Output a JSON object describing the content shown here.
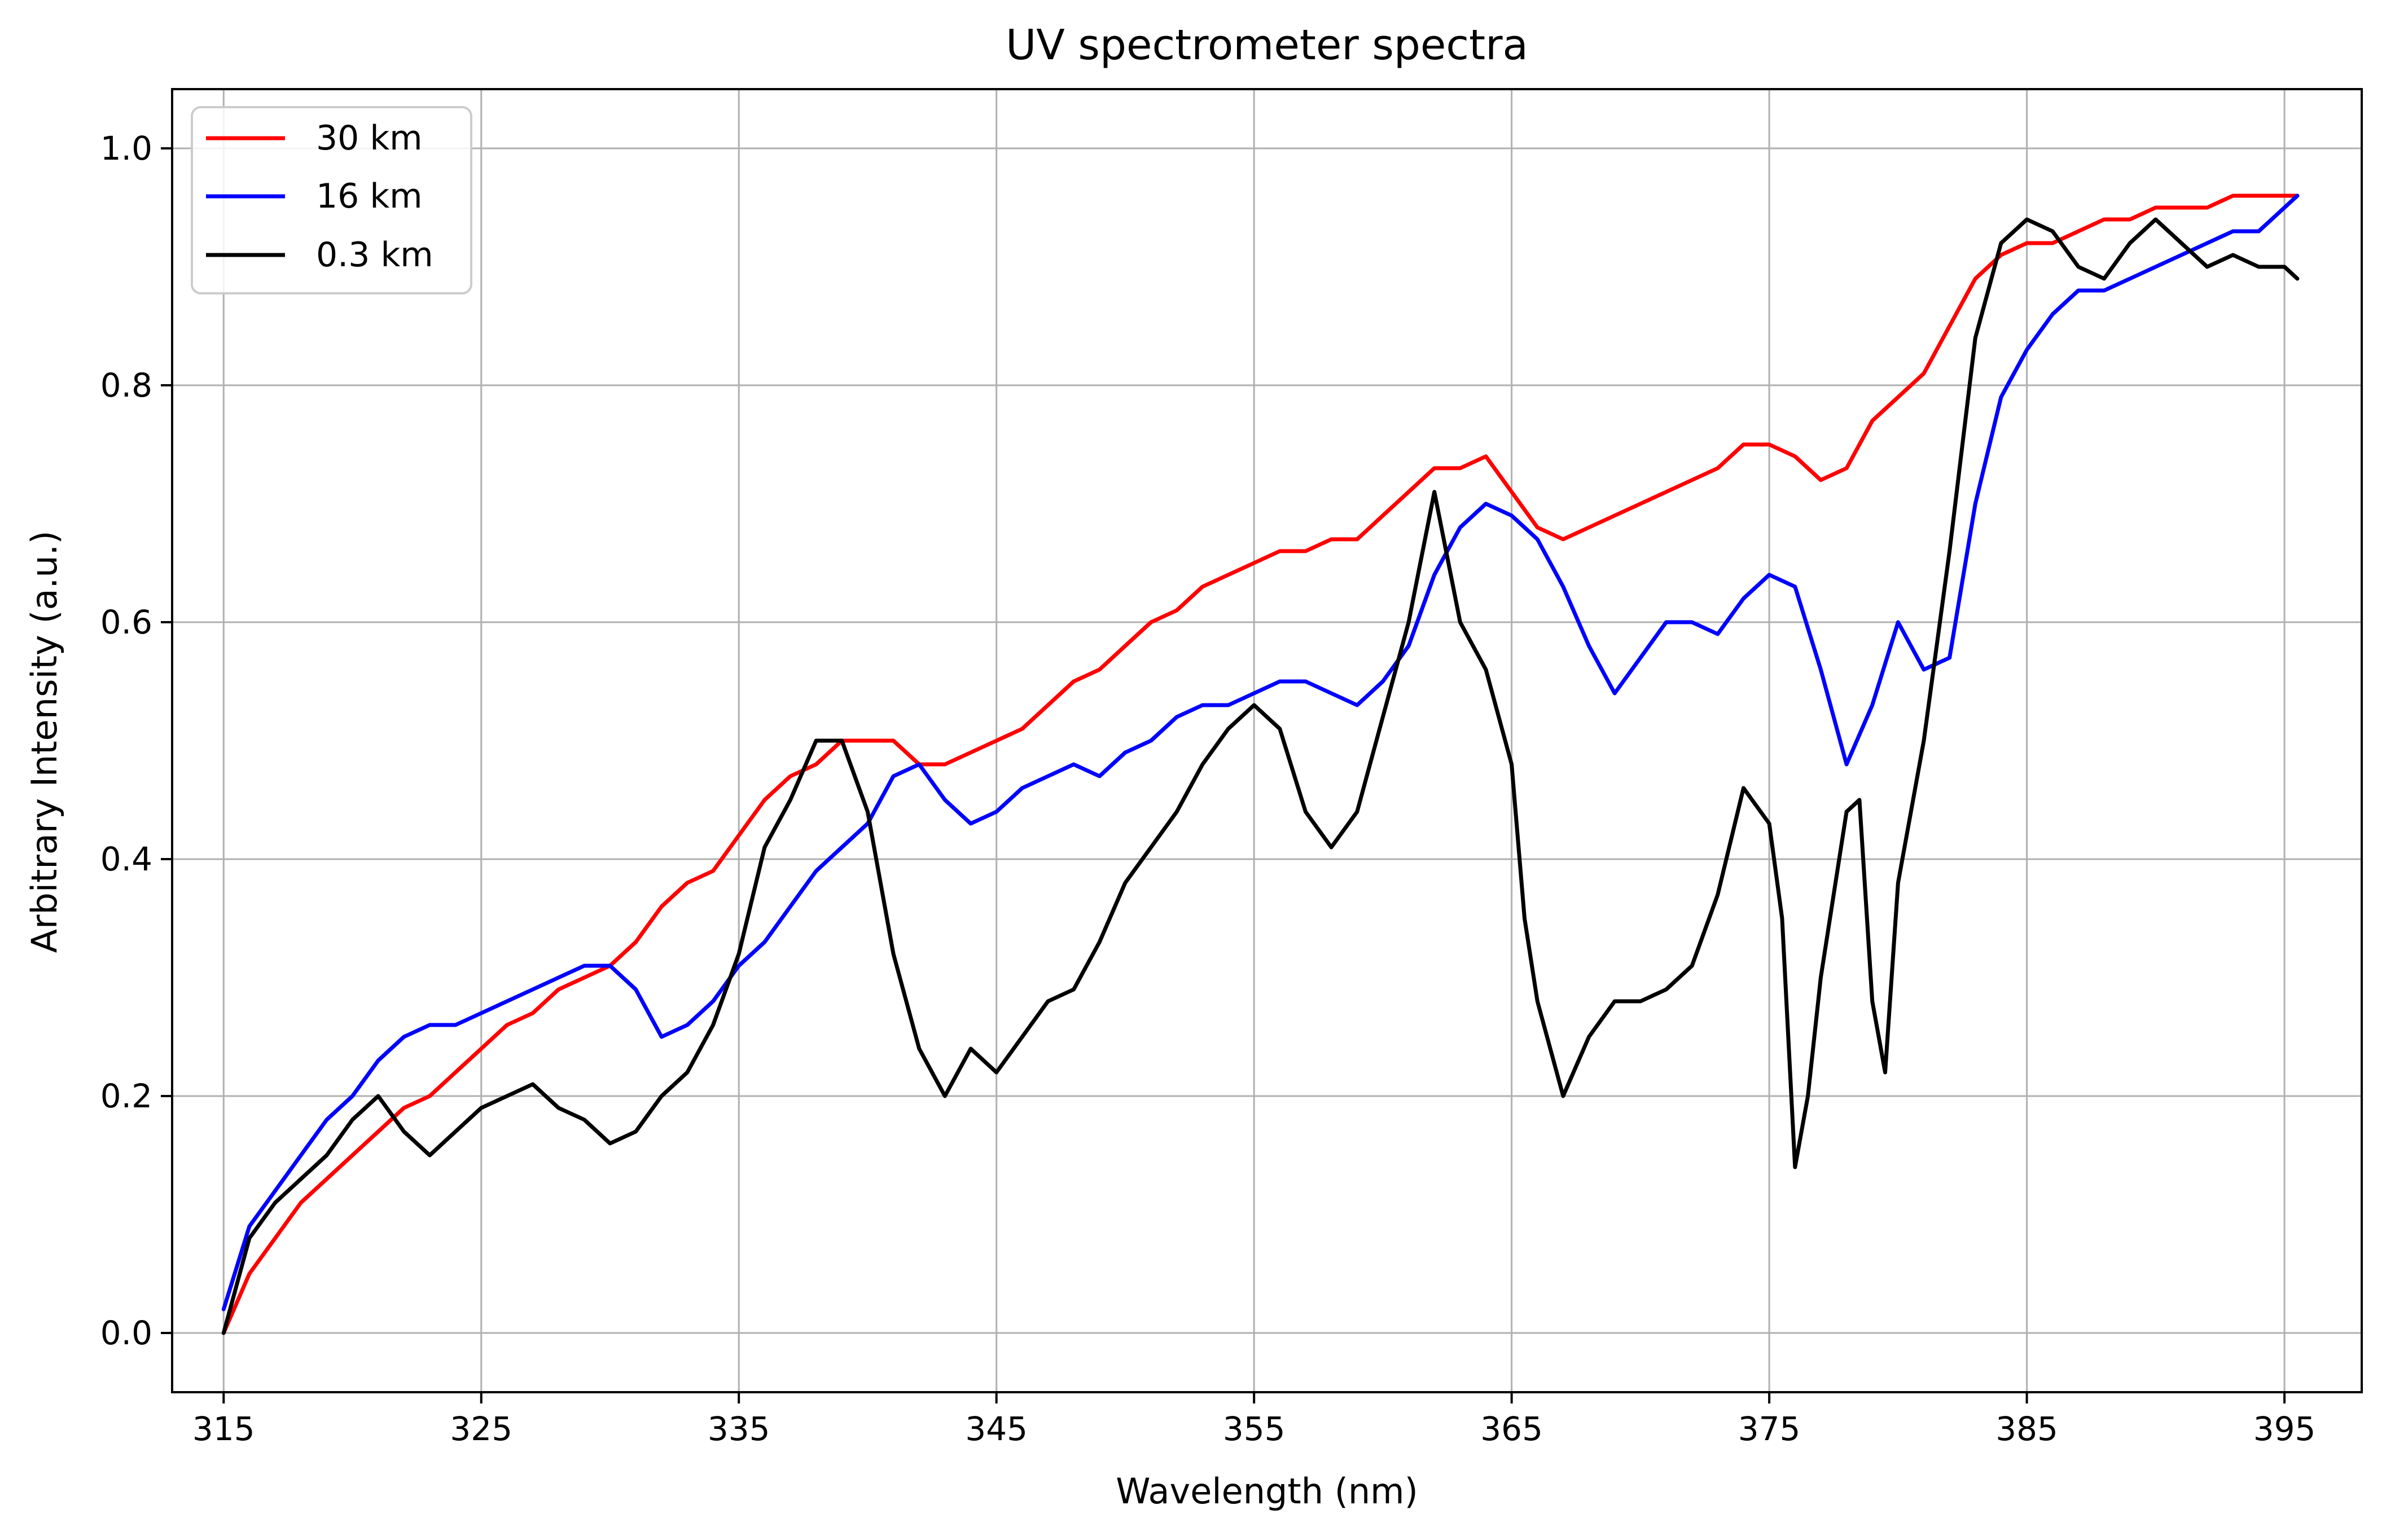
{
  "chart_data": {
    "type": "line",
    "title": "UV spectrometer spectra",
    "xlabel": "Wavelength (nm)",
    "ylabel": "Arbitrary Intensity (a.u.)",
    "xlim": [
      313,
      398
    ],
    "ylim": [
      -0.05,
      1.05
    ],
    "xticks": [
      315,
      325,
      335,
      345,
      355,
      365,
      375,
      385,
      395
    ],
    "xtick_labels": [
      "315",
      "325",
      "335",
      "345",
      "355",
      "365",
      "375",
      "385",
      "395"
    ],
    "yticks": [
      0.0,
      0.2,
      0.4,
      0.6,
      0.8,
      1.0
    ],
    "ytick_labels": [
      "0.0",
      "0.2",
      "0.4",
      "0.6",
      "0.8",
      "1.0"
    ],
    "grid": true,
    "legend_position": "upper-left",
    "series": [
      {
        "name": "30 km",
        "color": "#ff0000",
        "x": [
          315,
          316,
          317,
          318,
          319,
          320,
          321,
          322,
          323,
          324,
          325,
          326,
          327,
          328,
          329,
          330,
          331,
          332,
          333,
          334,
          335,
          336,
          337,
          338,
          339,
          340,
          341,
          342,
          343,
          344,
          345,
          346,
          347,
          348,
          349,
          350,
          351,
          352,
          353,
          354,
          355,
          356,
          357,
          358,
          359,
          360,
          361,
          362,
          363,
          364,
          365,
          366,
          367,
          368,
          369,
          370,
          371,
          372,
          373,
          374,
          375,
          376,
          377,
          378,
          379,
          380,
          381,
          382,
          383,
          384,
          385,
          386,
          387,
          388,
          389,
          390,
          391,
          392,
          393,
          394,
          395,
          395.5
        ],
        "y": [
          0.0,
          0.05,
          0.08,
          0.11,
          0.13,
          0.15,
          0.17,
          0.19,
          0.2,
          0.22,
          0.24,
          0.26,
          0.27,
          0.29,
          0.3,
          0.31,
          0.33,
          0.36,
          0.38,
          0.39,
          0.42,
          0.45,
          0.47,
          0.48,
          0.5,
          0.5,
          0.5,
          0.48,
          0.48,
          0.49,
          0.5,
          0.51,
          0.53,
          0.55,
          0.56,
          0.58,
          0.6,
          0.61,
          0.63,
          0.64,
          0.65,
          0.66,
          0.66,
          0.67,
          0.67,
          0.69,
          0.71,
          0.73,
          0.73,
          0.74,
          0.71,
          0.68,
          0.67,
          0.68,
          0.69,
          0.7,
          0.71,
          0.72,
          0.73,
          0.75,
          0.75,
          0.74,
          0.72,
          0.73,
          0.77,
          0.79,
          0.81,
          0.85,
          0.89,
          0.91,
          0.92,
          0.92,
          0.93,
          0.94,
          0.94,
          0.95,
          0.95,
          0.95,
          0.96,
          0.96,
          0.96,
          0.96
        ]
      },
      {
        "name": "16 km",
        "color": "#0000ff",
        "x": [
          315,
          316,
          317,
          318,
          319,
          320,
          321,
          322,
          323,
          324,
          325,
          326,
          327,
          328,
          329,
          330,
          331,
          332,
          333,
          334,
          335,
          336,
          337,
          338,
          339,
          340,
          341,
          342,
          343,
          344,
          345,
          346,
          347,
          348,
          349,
          350,
          351,
          352,
          353,
          354,
          355,
          356,
          357,
          358,
          359,
          360,
          361,
          362,
          363,
          364,
          365,
          366,
          367,
          368,
          369,
          370,
          371,
          372,
          373,
          374,
          375,
          376,
          377,
          378,
          379,
          380,
          381,
          382,
          383,
          384,
          385,
          386,
          387,
          388,
          389,
          390,
          391,
          392,
          393,
          394,
          395,
          395.5
        ],
        "y": [
          0.02,
          0.09,
          0.12,
          0.15,
          0.18,
          0.2,
          0.23,
          0.25,
          0.26,
          0.26,
          0.27,
          0.28,
          0.29,
          0.3,
          0.31,
          0.31,
          0.29,
          0.25,
          0.26,
          0.28,
          0.31,
          0.33,
          0.36,
          0.39,
          0.41,
          0.43,
          0.47,
          0.48,
          0.45,
          0.43,
          0.44,
          0.46,
          0.47,
          0.48,
          0.47,
          0.49,
          0.5,
          0.52,
          0.53,
          0.53,
          0.54,
          0.55,
          0.55,
          0.54,
          0.53,
          0.55,
          0.58,
          0.64,
          0.68,
          0.7,
          0.69,
          0.67,
          0.63,
          0.58,
          0.54,
          0.57,
          0.6,
          0.6,
          0.59,
          0.62,
          0.64,
          0.63,
          0.56,
          0.48,
          0.53,
          0.6,
          0.56,
          0.57,
          0.7,
          0.79,
          0.83,
          0.86,
          0.88,
          0.88,
          0.89,
          0.9,
          0.91,
          0.92,
          0.93,
          0.93,
          0.95,
          0.96
        ]
      },
      {
        "name": "0.3 km",
        "color": "#000000",
        "x": [
          315,
          315.5,
          316,
          317,
          318,
          319,
          320,
          321,
          322,
          323,
          324,
          325,
          326,
          327,
          328,
          329,
          330,
          331,
          332,
          333,
          334,
          335,
          336,
          337,
          338,
          339,
          340,
          340.5,
          341,
          342,
          343,
          344,
          345,
          346,
          347,
          348,
          349,
          350,
          351,
          352,
          353,
          354,
          355,
          356,
          357,
          358,
          359,
          360,
          361,
          362,
          363,
          364,
          365,
          365.5,
          366,
          367,
          368,
          369,
          370,
          371,
          372,
          373,
          374,
          375,
          375.5,
          376,
          376.5,
          377,
          378,
          378.5,
          379,
          379.5,
          380,
          381,
          382,
          383,
          384,
          385,
          386,
          387,
          388,
          389,
          390,
          391,
          392,
          393,
          394,
          395,
          395.5
        ],
        "y": [
          0.0,
          0.04,
          0.08,
          0.11,
          0.13,
          0.15,
          0.18,
          0.2,
          0.17,
          0.15,
          0.17,
          0.19,
          0.2,
          0.21,
          0.19,
          0.18,
          0.16,
          0.17,
          0.2,
          0.22,
          0.26,
          0.32,
          0.41,
          0.45,
          0.5,
          0.5,
          0.44,
          0.38,
          0.32,
          0.24,
          0.2,
          0.24,
          0.22,
          0.25,
          0.28,
          0.29,
          0.33,
          0.38,
          0.41,
          0.44,
          0.48,
          0.51,
          0.53,
          0.51,
          0.44,
          0.41,
          0.44,
          0.52,
          0.6,
          0.71,
          0.6,
          0.56,
          0.48,
          0.35,
          0.28,
          0.2,
          0.25,
          0.28,
          0.28,
          0.29,
          0.31,
          0.37,
          0.46,
          0.43,
          0.35,
          0.14,
          0.2,
          0.3,
          0.44,
          0.45,
          0.28,
          0.22,
          0.38,
          0.5,
          0.66,
          0.84,
          0.92,
          0.94,
          0.93,
          0.9,
          0.89,
          0.92,
          0.94,
          0.92,
          0.9,
          0.91,
          0.9,
          0.9,
          0.89
        ]
      }
    ]
  }
}
